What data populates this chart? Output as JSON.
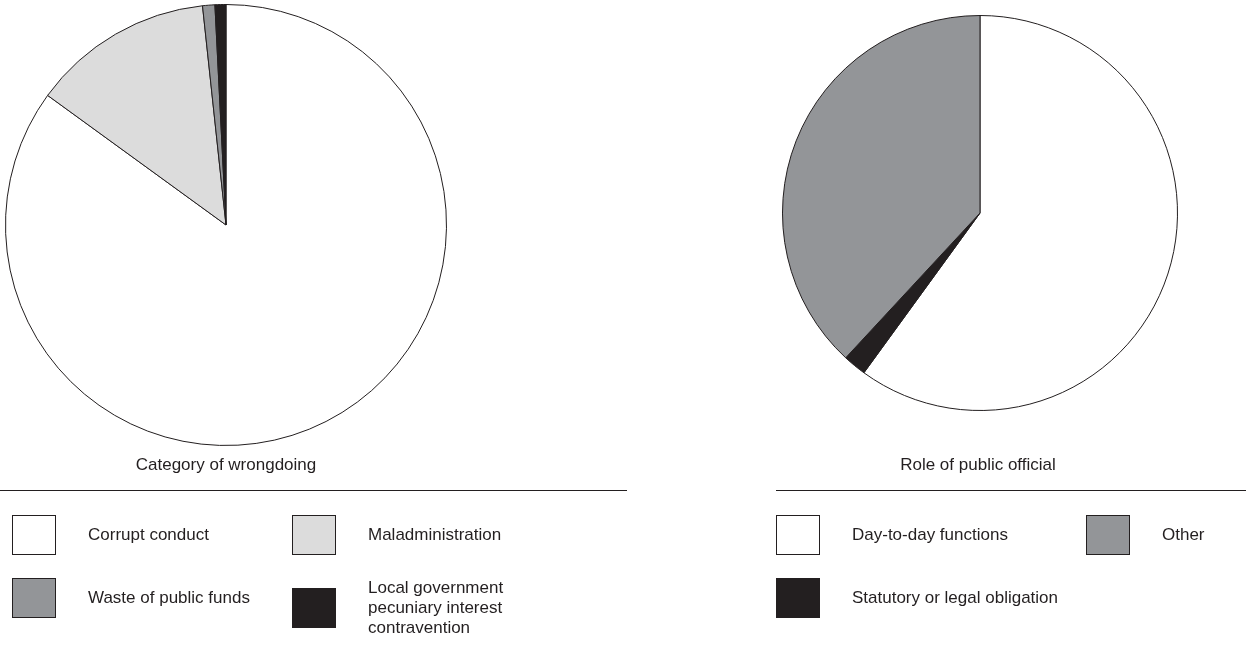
{
  "chart_data": [
    {
      "type": "pie",
      "title": "Category of wrongdoing",
      "categories": [
        "Corrupt conduct",
        "Maladministration",
        "Waste of public funds",
        "Local government pecuniary interest contravention"
      ],
      "values": [
        85,
        13.3,
        0.9,
        0.8
      ],
      "colors": [
        "#ffffff",
        "#dcdcdc",
        "#939598",
        "#231f20"
      ],
      "legend": "bottom"
    },
    {
      "type": "pie",
      "title": "Role of public official",
      "categories": [
        "Day-to-day functions",
        "Statutory or legal obligation",
        "Other"
      ],
      "values": [
        60,
        1.9,
        38.1
      ],
      "colors": [
        "#ffffff",
        "#231f20",
        "#939598"
      ],
      "legend": "bottom"
    }
  ]
}
